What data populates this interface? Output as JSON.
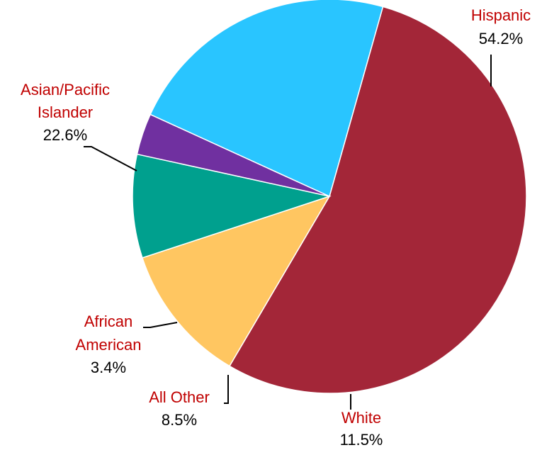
{
  "chart_data": {
    "type": "pie",
    "slices": [
      {
        "label": "Hispanic",
        "display": "Hispanic",
        "value": 54.2,
        "value_label": "54.2%",
        "color": "#A32638"
      },
      {
        "label": "White",
        "display": "White",
        "value": 11.5,
        "value_label": "11.5%",
        "color": "#FFC661"
      },
      {
        "label": "All Other",
        "display": "All Other",
        "value": 8.5,
        "value_label": "8.5%",
        "color": "#00A08E"
      },
      {
        "label": "African American",
        "display": "African\nAmerican",
        "value": 3.4,
        "value_label": "3.4%",
        "color": "#7030A0"
      },
      {
        "label": "Asian/Pacific Islander",
        "display": "Asian/Pacific\nIslander",
        "value": 22.6,
        "value_label": "22.6%",
        "color": "#29C5FF"
      }
    ],
    "label_color": "#C00000",
    "value_label_color": "#000000"
  }
}
